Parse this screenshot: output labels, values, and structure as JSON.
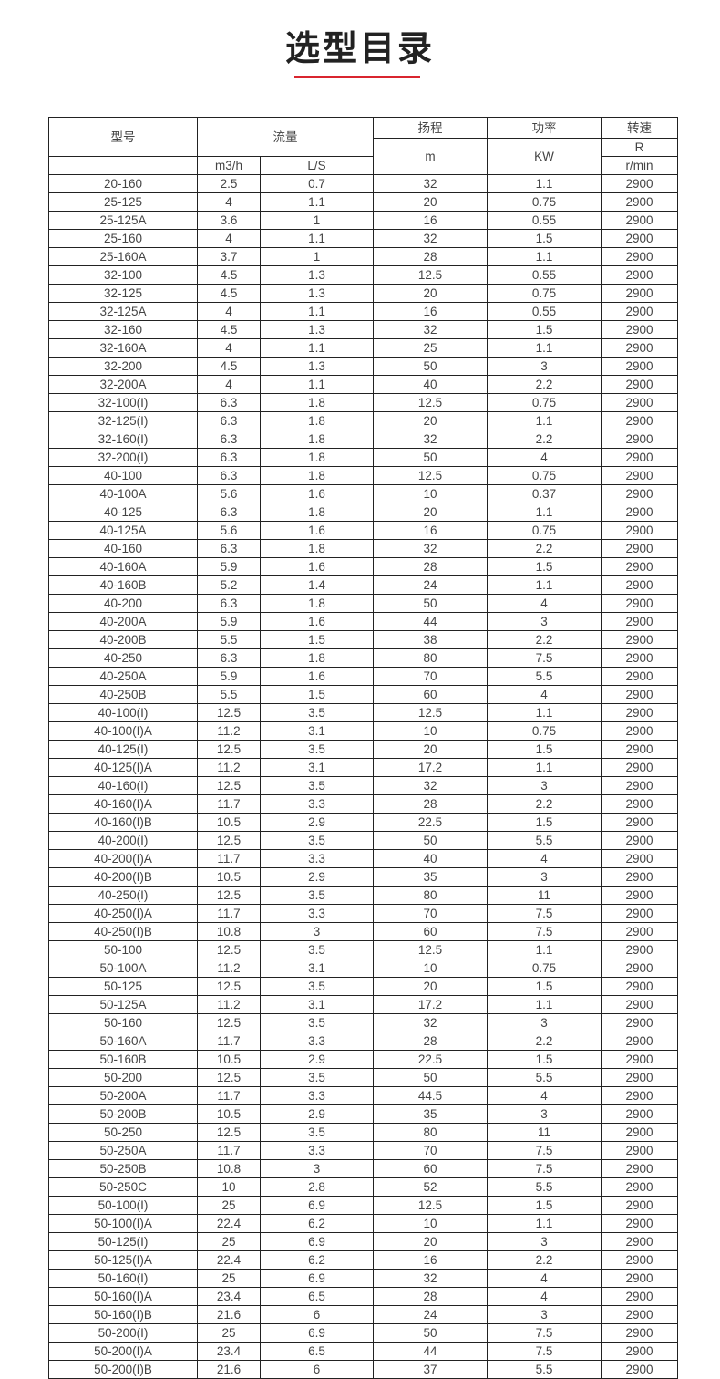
{
  "title": "选型目录",
  "accent": "#d9252f",
  "header": {
    "model": "型号",
    "flow": "流量",
    "flow_m3h": "m3/h",
    "flow_ls": "L/S",
    "head": "扬程",
    "head_unit": "m",
    "power": "功率",
    "power_unit": "KW",
    "speed": "转速",
    "speed_r": "R",
    "speed_unit": "r/min"
  },
  "rows": [
    [
      "20-160",
      "2.5",
      "0.7",
      "32",
      "1.1",
      "2900"
    ],
    [
      "25-125",
      "4",
      "1.1",
      "20",
      "0.75",
      "2900"
    ],
    [
      "25-125A",
      "3.6",
      "1",
      "16",
      "0.55",
      "2900"
    ],
    [
      "25-160",
      "4",
      "1.1",
      "32",
      "1.5",
      "2900"
    ],
    [
      "25-160A",
      "3.7",
      "1",
      "28",
      "1.1",
      "2900"
    ],
    [
      "32-100",
      "4.5",
      "1.3",
      "12.5",
      "0.55",
      "2900"
    ],
    [
      "32-125",
      "4.5",
      "1.3",
      "20",
      "0.75",
      "2900"
    ],
    [
      "32-125A",
      "4",
      "1.1",
      "16",
      "0.55",
      "2900"
    ],
    [
      "32-160",
      "4.5",
      "1.3",
      "32",
      "1.5",
      "2900"
    ],
    [
      "32-160A",
      "4",
      "1.1",
      "25",
      "1.1",
      "2900"
    ],
    [
      "32-200",
      "4.5",
      "1.3",
      "50",
      "3",
      "2900"
    ],
    [
      "32-200A",
      "4",
      "1.1",
      "40",
      "2.2",
      "2900"
    ],
    [
      "32-100(I)",
      "6.3",
      "1.8",
      "12.5",
      "0.75",
      "2900"
    ],
    [
      "32-125(I)",
      "6.3",
      "1.8",
      "20",
      "1.1",
      "2900"
    ],
    [
      "32-160(I)",
      "6.3",
      "1.8",
      "32",
      "2.2",
      "2900"
    ],
    [
      "32-200(I)",
      "6.3",
      "1.8",
      "50",
      "4",
      "2900"
    ],
    [
      "40-100",
      "6.3",
      "1.8",
      "12.5",
      "0.75",
      "2900"
    ],
    [
      "40-100A",
      "5.6",
      "1.6",
      "10",
      "0.37",
      "2900"
    ],
    [
      "40-125",
      "6.3",
      "1.8",
      "20",
      "1.1",
      "2900"
    ],
    [
      "40-125A",
      "5.6",
      "1.6",
      "16",
      "0.75",
      "2900"
    ],
    [
      "40-160",
      "6.3",
      "1.8",
      "32",
      "2.2",
      "2900"
    ],
    [
      "40-160A",
      "5.9",
      "1.6",
      "28",
      "1.5",
      "2900"
    ],
    [
      "40-160B",
      "5.2",
      "1.4",
      "24",
      "1.1",
      "2900"
    ],
    [
      "40-200",
      "6.3",
      "1.8",
      "50",
      "4",
      "2900"
    ],
    [
      "40-200A",
      "5.9",
      "1.6",
      "44",
      "3",
      "2900"
    ],
    [
      "40-200B",
      "5.5",
      "1.5",
      "38",
      "2.2",
      "2900"
    ],
    [
      "40-250",
      "6.3",
      "1.8",
      "80",
      "7.5",
      "2900"
    ],
    [
      "40-250A",
      "5.9",
      "1.6",
      "70",
      "5.5",
      "2900"
    ],
    [
      "40-250B",
      "5.5",
      "1.5",
      "60",
      "4",
      "2900"
    ],
    [
      "40-100(I)",
      "12.5",
      "3.5",
      "12.5",
      "1.1",
      "2900"
    ],
    [
      "40-100(I)A",
      "11.2",
      "3.1",
      "10",
      "0.75",
      "2900"
    ],
    [
      "40-125(I)",
      "12.5",
      "3.5",
      "20",
      "1.5",
      "2900"
    ],
    [
      "40-125(I)A",
      "11.2",
      "3.1",
      "17.2",
      "1.1",
      "2900"
    ],
    [
      "40-160(I)",
      "12.5",
      "3.5",
      "32",
      "3",
      "2900"
    ],
    [
      "40-160(I)A",
      "11.7",
      "3.3",
      "28",
      "2.2",
      "2900"
    ],
    [
      "40-160(I)B",
      "10.5",
      "2.9",
      "22.5",
      "1.5",
      "2900"
    ],
    [
      "40-200(I)",
      "12.5",
      "3.5",
      "50",
      "5.5",
      "2900"
    ],
    [
      "40-200(I)A",
      "11.7",
      "3.3",
      "40",
      "4",
      "2900"
    ],
    [
      "40-200(I)B",
      "10.5",
      "2.9",
      "35",
      "3",
      "2900"
    ],
    [
      "40-250(I)",
      "12.5",
      "3.5",
      "80",
      "11",
      "2900"
    ],
    [
      "40-250(I)A",
      "11.7",
      "3.3",
      "70",
      "7.5",
      "2900"
    ],
    [
      "40-250(I)B",
      "10.8",
      "3",
      "60",
      "7.5",
      "2900"
    ],
    [
      "50-100",
      "12.5",
      "3.5",
      "12.5",
      "1.1",
      "2900"
    ],
    [
      "50-100A",
      "11.2",
      "3.1",
      "10",
      "0.75",
      "2900"
    ],
    [
      "50-125",
      "12.5",
      "3.5",
      "20",
      "1.5",
      "2900"
    ],
    [
      "50-125A",
      "11.2",
      "3.1",
      "17.2",
      "1.1",
      "2900"
    ],
    [
      "50-160",
      "12.5",
      "3.5",
      "32",
      "3",
      "2900"
    ],
    [
      "50-160A",
      "11.7",
      "3.3",
      "28",
      "2.2",
      "2900"
    ],
    [
      "50-160B",
      "10.5",
      "2.9",
      "22.5",
      "1.5",
      "2900"
    ],
    [
      "50-200",
      "12.5",
      "3.5",
      "50",
      "5.5",
      "2900"
    ],
    [
      "50-200A",
      "11.7",
      "3.3",
      "44.5",
      "4",
      "2900"
    ],
    [
      "50-200B",
      "10.5",
      "2.9",
      "35",
      "3",
      "2900"
    ],
    [
      "50-250",
      "12.5",
      "3.5",
      "80",
      "11",
      "2900"
    ],
    [
      "50-250A",
      "11.7",
      "3.3",
      "70",
      "7.5",
      "2900"
    ],
    [
      "50-250B",
      "10.8",
      "3",
      "60",
      "7.5",
      "2900"
    ],
    [
      "50-250C",
      "10",
      "2.8",
      "52",
      "5.5",
      "2900"
    ],
    [
      "50-100(I)",
      "25",
      "6.9",
      "12.5",
      "1.5",
      "2900"
    ],
    [
      "50-100(I)A",
      "22.4",
      "6.2",
      "10",
      "1.1",
      "2900"
    ],
    [
      "50-125(I)",
      "25",
      "6.9",
      "20",
      "3",
      "2900"
    ],
    [
      "50-125(I)A",
      "22.4",
      "6.2",
      "16",
      "2.2",
      "2900"
    ],
    [
      "50-160(I)",
      "25",
      "6.9",
      "32",
      "4",
      "2900"
    ],
    [
      "50-160(I)A",
      "23.4",
      "6.5",
      "28",
      "4",
      "2900"
    ],
    [
      "50-160(I)B",
      "21.6",
      "6",
      "24",
      "3",
      "2900"
    ],
    [
      "50-200(I)",
      "25",
      "6.9",
      "50",
      "7.5",
      "2900"
    ],
    [
      "50-200(I)A",
      "23.4",
      "6.5",
      "44",
      "7.5",
      "2900"
    ],
    [
      "50-200(I)B",
      "21.6",
      "6",
      "37",
      "5.5",
      "2900"
    ]
  ]
}
